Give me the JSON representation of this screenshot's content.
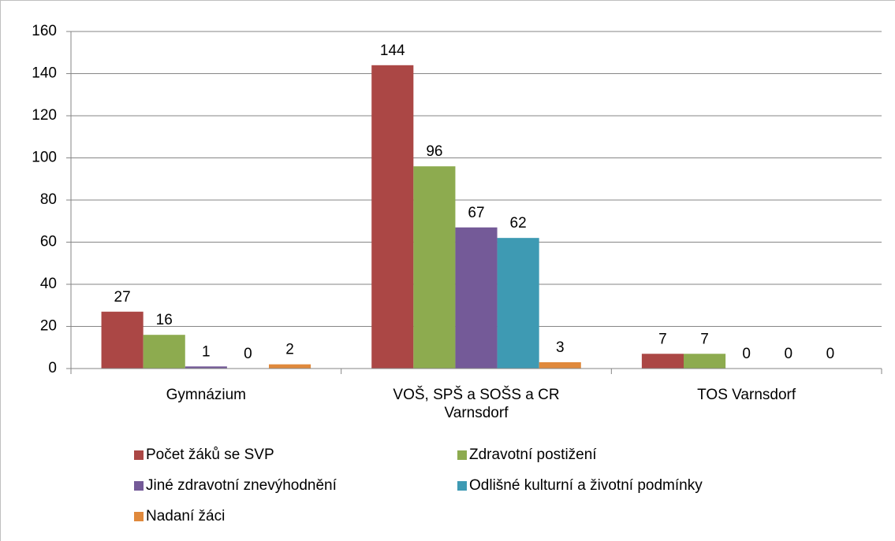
{
  "chart_data": {
    "type": "bar",
    "categories": [
      "Gymnázium",
      "VOŠ, SPŠ a SOŠS a CR Varnsdorf",
      "TOS Varnsdorf"
    ],
    "series": [
      {
        "name": "Počet žáků se SVP",
        "color": "#ab4745",
        "values": [
          27,
          144,
          7
        ]
      },
      {
        "name": "Zdravotní postižení",
        "color": "#8dab4f",
        "values": [
          16,
          96,
          7
        ]
      },
      {
        "name": "Jiné zdravotní znevýhodnění",
        "color": "#745a98",
        "values": [
          1,
          67,
          0
        ]
      },
      {
        "name": "Odlišné kulturní a životní podmínky",
        "color": "#3e9ab3",
        "values": [
          0,
          62,
          0
        ]
      },
      {
        "name": "Nadaní žáci",
        "color": "#e0893c",
        "values": [
          2,
          3,
          0
        ]
      }
    ],
    "ylim": [
      0,
      160
    ],
    "yticks": [
      0,
      20,
      40,
      60,
      80,
      100,
      120,
      140,
      160
    ],
    "grid": true,
    "legend": "bottom"
  }
}
